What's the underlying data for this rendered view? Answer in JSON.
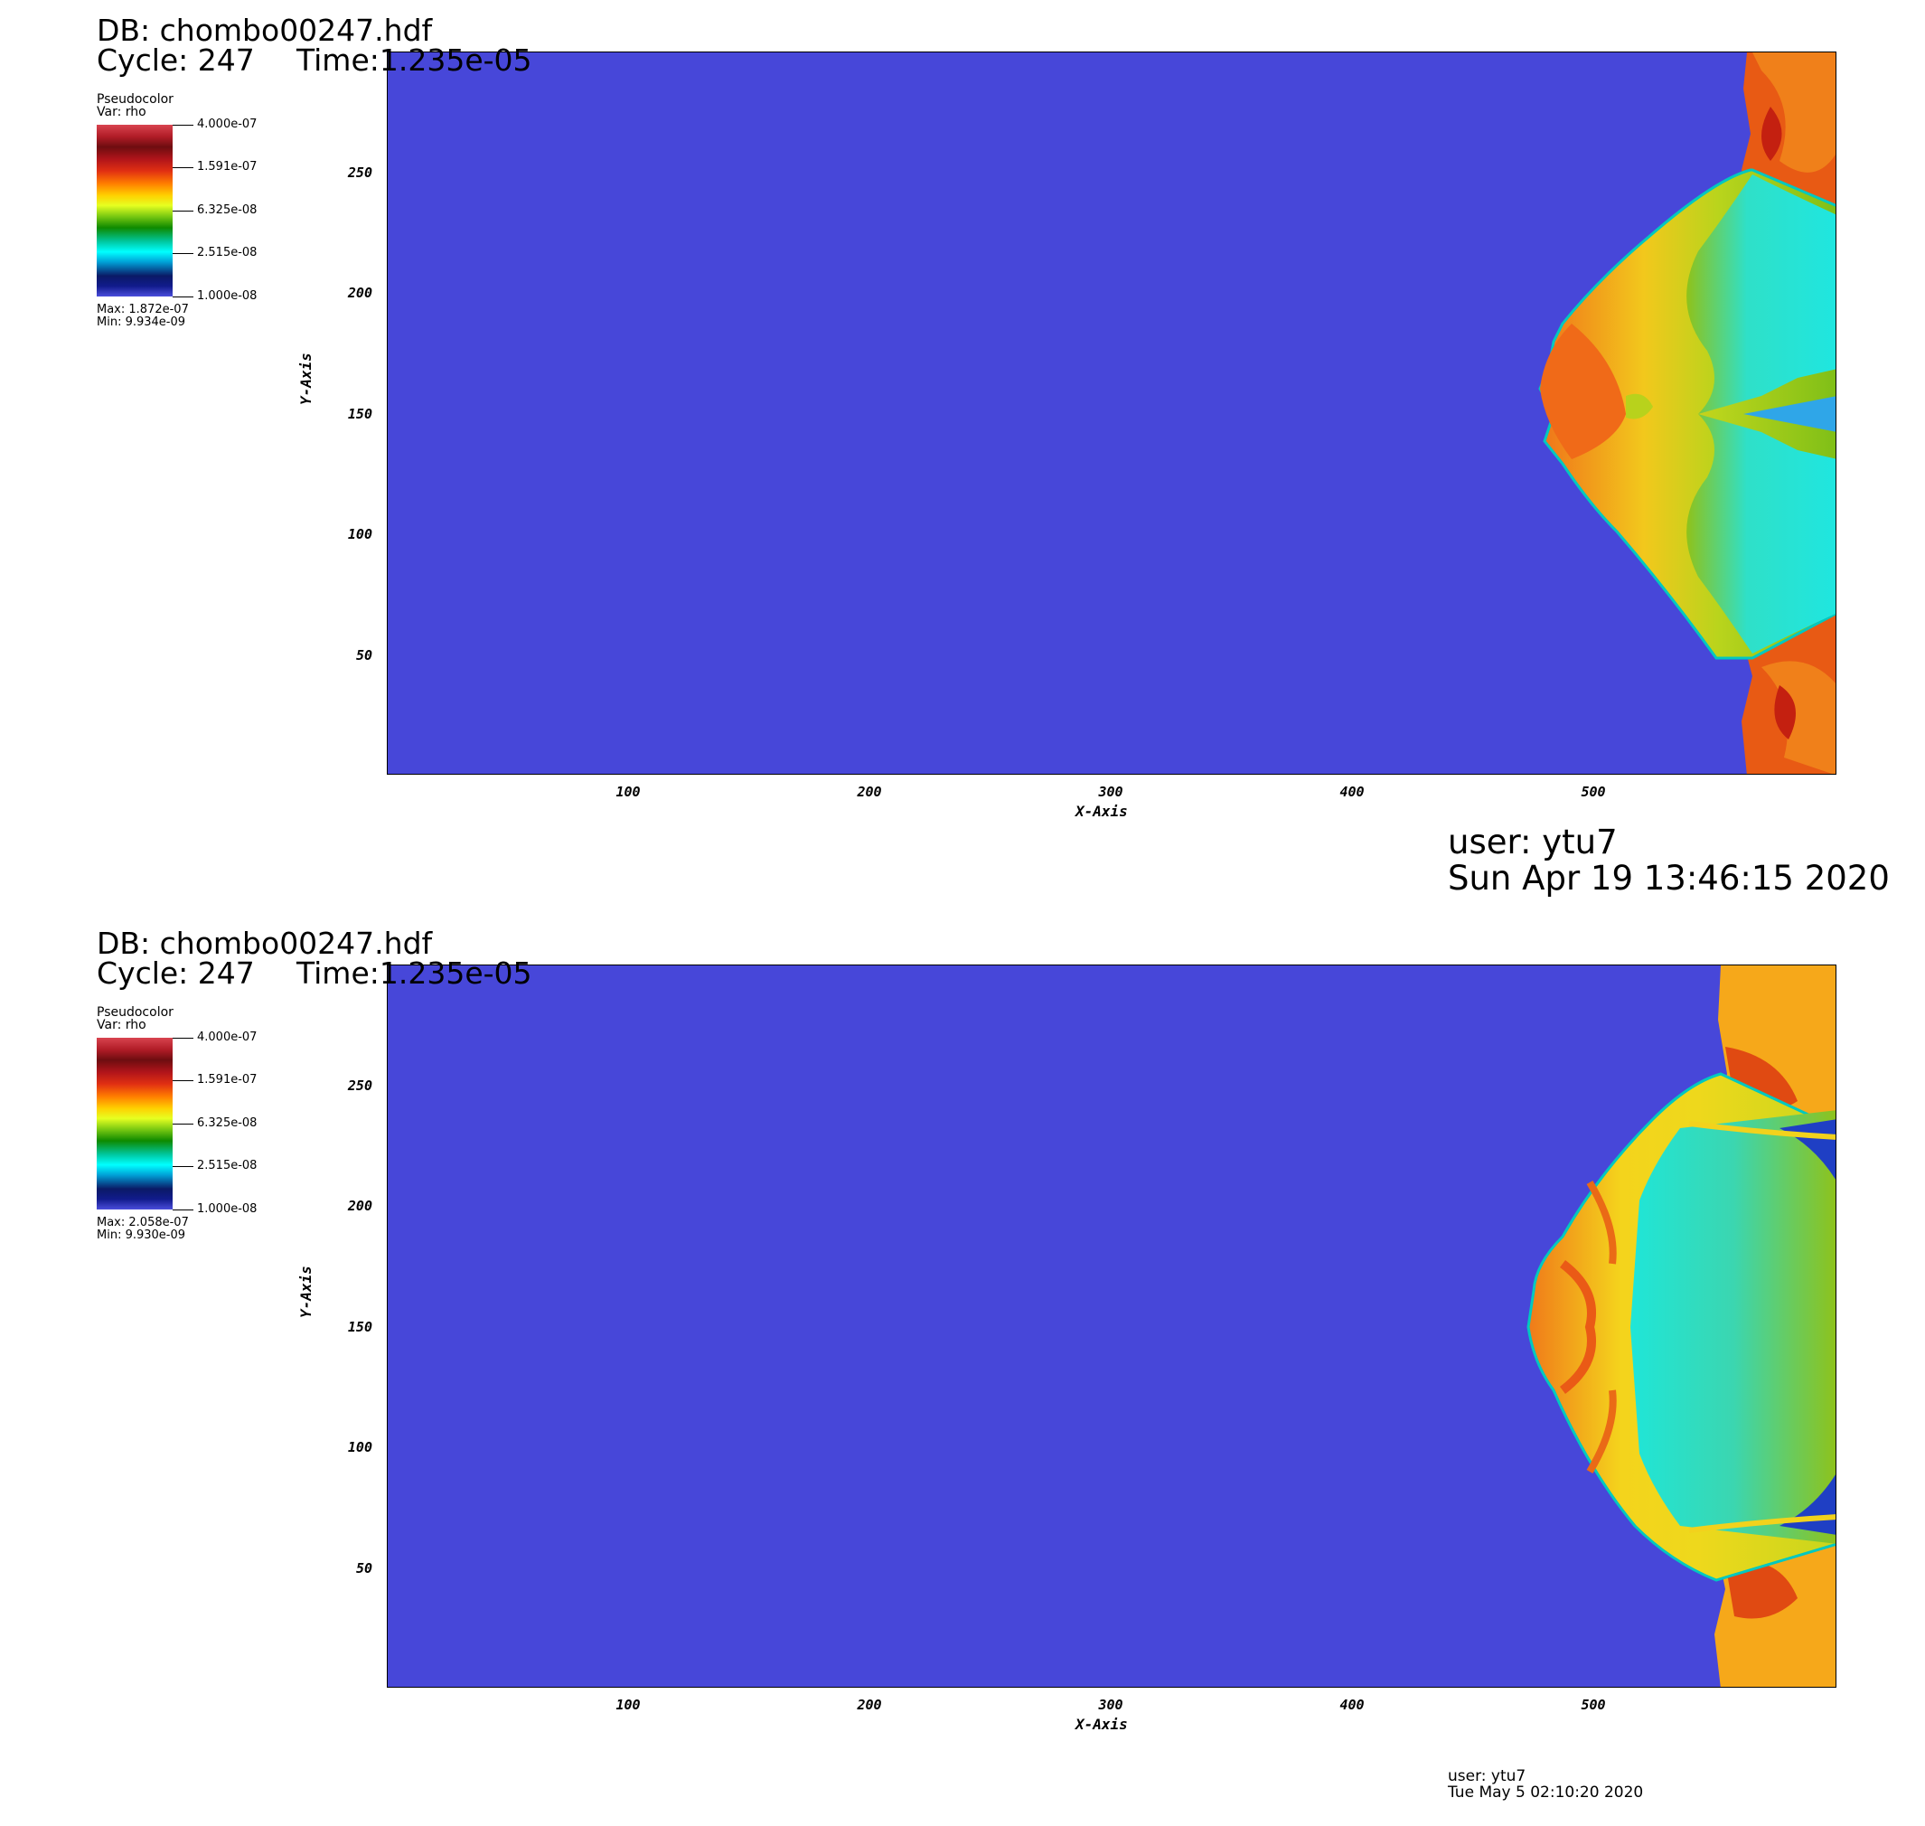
{
  "panels": [
    {
      "db_label": "DB: chombo00247.hdf",
      "cycle_label": "Cycle: 247",
      "time_label": "Time:1.235e-05",
      "legend": {
        "plot_type": "Pseudocolor",
        "var_label": "Var: rho",
        "ticks": [
          "4.000e-07",
          "1.591e-07",
          "6.325e-08",
          "2.515e-08",
          "1.000e-08"
        ],
        "max_label": "Max:  1.872e-07",
        "min_label": "Min:  9.934e-09"
      },
      "x_axis": {
        "title": "X-Axis",
        "ticks": [
          "100",
          "200",
          "300",
          "400",
          "500"
        ],
        "range": [
          0,
          600
        ]
      },
      "y_axis": {
        "title": "Y-Axis",
        "ticks": [
          "250",
          "200",
          "150",
          "100",
          "50"
        ],
        "range": [
          0,
          300
        ]
      },
      "user_label": "user: ytu7",
      "date_label": "Sun Apr 19 13:46:15 2020"
    },
    {
      "db_label": "DB: chombo00247.hdf",
      "cycle_label": "Cycle: 247",
      "time_label": "Time:1.235e-05",
      "legend": {
        "plot_type": "Pseudocolor",
        "var_label": "Var: rho",
        "ticks": [
          "4.000e-07",
          "1.591e-07",
          "6.325e-08",
          "2.515e-08",
          "1.000e-08"
        ],
        "max_label": "Max:  2.058e-07",
        "min_label": "Min:  9.930e-09"
      },
      "x_axis": {
        "title": "X-Axis",
        "ticks": [
          "100",
          "200",
          "300",
          "400",
          "500"
        ],
        "range": [
          0,
          600
        ]
      },
      "y_axis": {
        "title": "Y-Axis",
        "ticks": [
          "250",
          "200",
          "150",
          "100",
          "50"
        ],
        "range": [
          0,
          300
        ]
      },
      "user_label": "user: ytu7",
      "date_label": "Tue May  5 02:10:20 2020"
    }
  ],
  "colors": {
    "background_field": "#4747d9",
    "shell_orange": "#f0731a",
    "shell_yellow": "#f2d21c",
    "inner_green": "#8fc21a",
    "inner_cyan": "#1fe0d6",
    "deep_blue": "#1f3fc4"
  }
}
